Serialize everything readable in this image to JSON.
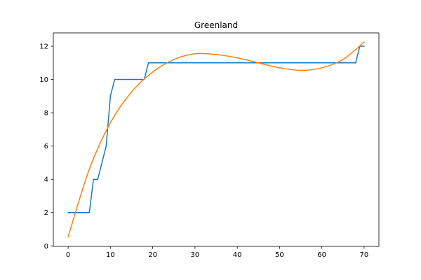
{
  "chart_data": {
    "type": "line",
    "title": "Greenland",
    "xlabel": "",
    "ylabel": "",
    "xlim": [
      -3.5,
      73.5
    ],
    "ylim": [
      -0.03,
      12.8
    ],
    "grid": false,
    "xticks": [
      0,
      10,
      20,
      30,
      40,
      50,
      60,
      70
    ],
    "yticks": [
      0,
      2,
      4,
      6,
      8,
      10,
      12
    ],
    "series": [
      {
        "type": "step",
        "color": "#1f77b4",
        "points": [
          [
            0,
            2
          ],
          [
            5,
            2
          ],
          [
            6,
            4
          ],
          [
            7,
            4
          ],
          [
            9,
            6
          ],
          [
            10,
            9
          ],
          [
            11,
            10
          ],
          [
            18,
            10
          ],
          [
            19,
            11
          ],
          [
            68,
            11
          ],
          [
            69,
            12
          ],
          [
            70,
            12
          ]
        ]
      },
      {
        "type": "cubic-fit",
        "color": "#ff7f0e",
        "points": [
          [
            0,
            0.55
          ],
          [
            5,
            4.6
          ],
          [
            10,
            7.4
          ],
          [
            15,
            9.25
          ],
          [
            20,
            10.45
          ],
          [
            25,
            11.2
          ],
          [
            30,
            11.55
          ],
          [
            35,
            11.5
          ],
          [
            40,
            11.3
          ],
          [
            45,
            11.0
          ],
          [
            50,
            10.7
          ],
          [
            55,
            10.55
          ],
          [
            60,
            10.7
          ],
          [
            65,
            11.2
          ],
          [
            70,
            12.25
          ]
        ]
      }
    ]
  }
}
